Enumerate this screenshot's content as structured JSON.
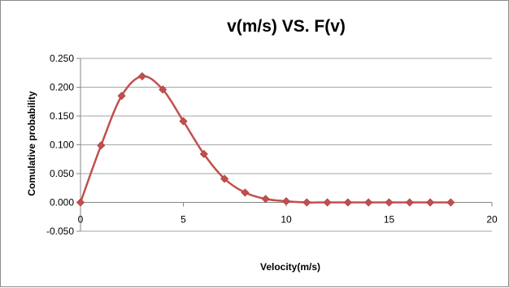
{
  "chart_data": {
    "type": "line",
    "title": "v(m/s) VS. F(v)",
    "xlabel": "Velocity(m/s)",
    "ylabel": "Comulative probability",
    "xlim": [
      0,
      20
    ],
    "ylim": [
      -0.05,
      0.25
    ],
    "x_ticks": [
      "0",
      "5",
      "10",
      "15",
      "20"
    ],
    "x_tick_values": [
      0,
      5,
      10,
      15,
      20
    ],
    "y_ticks": [
      "-0.050",
      "0.000",
      "0.050",
      "0.100",
      "0.150",
      "0.200",
      "0.250"
    ],
    "y_tick_values": [
      -0.05,
      0,
      0.05,
      0.1,
      0.15,
      0.2,
      0.25
    ],
    "grid": "horizontal",
    "legend": "none",
    "series": [
      {
        "color": "#c0504d",
        "marker": "diamond",
        "smooth": true,
        "x": [
          0,
          1,
          2,
          3,
          4,
          5,
          6,
          7,
          8,
          9,
          10,
          11,
          12,
          13,
          14,
          15,
          16,
          17,
          18
        ],
        "y": [
          0.0,
          0.099,
          0.185,
          0.219,
          0.196,
          0.141,
          0.084,
          0.041,
          0.017,
          0.006,
          0.002,
          0.0,
          0.0,
          0.0,
          0.0,
          0.0,
          0.0,
          0.0,
          0.0
        ]
      }
    ]
  }
}
